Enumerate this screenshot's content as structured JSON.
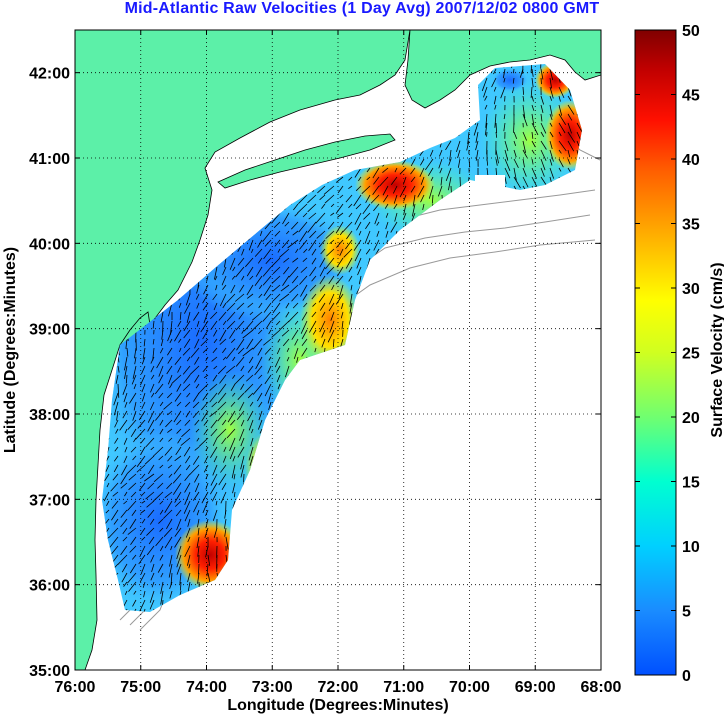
{
  "title": "Mid-Atlantic Raw Velocities (1 Day Avg) 2007/12/02 0800 GMT",
  "xlabel": "Longitude (Degrees:Minutes)",
  "ylabel": "Latitude (Degrees:Minutes)",
  "x_ticks": [
    "76:00",
    "75:00",
    "74:00",
    "73:00",
    "72:00",
    "71:00",
    "70:00",
    "69:00",
    "68:00"
  ],
  "y_ticks": [
    "35:00",
    "36:00",
    "37:00",
    "38:00",
    "39:00",
    "40:00",
    "41:00",
    "42:00"
  ],
  "colorbar": {
    "label": "Surface Velocity (cm/s)",
    "ticks": [
      "0",
      "5",
      "10",
      "15",
      "20",
      "25",
      "30",
      "35",
      "40",
      "45",
      "50"
    ],
    "range": [
      0,
      50
    ],
    "colors": [
      "#0050ff",
      "#1a8cff",
      "#00c8ff",
      "#00ffd8",
      "#60ff80",
      "#c8ff20",
      "#ffff00",
      "#ffc000",
      "#ff7000",
      "#ff1a00",
      "#c00000",
      "#800000"
    ]
  },
  "colors": {
    "land": "#5cf0a8",
    "ocean": "#ffffff",
    "title": "#1a1aff",
    "contour": "#888888"
  },
  "chart_data": {
    "type": "map",
    "xlim": [
      -76,
      -68
    ],
    "ylim": [
      35,
      42.5
    ],
    "grid": true,
    "units": "cm/s"
  }
}
